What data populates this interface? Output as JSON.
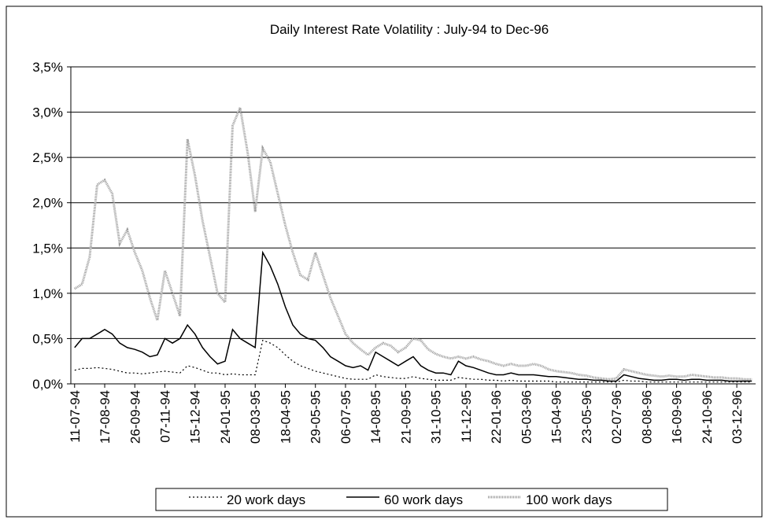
{
  "chart_data": {
    "type": "line",
    "title": "Daily Interest Rate Volatility : July-94 to Dec-96",
    "categories": [
      "11-07-94",
      null,
      null,
      null,
      "17-08-94",
      null,
      null,
      null,
      "26-09-94",
      null,
      null,
      null,
      "07-11-94",
      null,
      null,
      null,
      "15-12-94",
      null,
      null,
      null,
      "24-01-95",
      null,
      null,
      null,
      "08-03-95",
      null,
      null,
      null,
      "18-04-95",
      null,
      null,
      null,
      "29-05-95",
      null,
      null,
      null,
      "06-07-95",
      null,
      null,
      null,
      "14-08-95",
      null,
      null,
      null,
      "21-09-95",
      null,
      null,
      null,
      "31-10-95",
      null,
      null,
      null,
      "11-12-95",
      null,
      null,
      null,
      "22-01-96",
      null,
      null,
      null,
      "05-03-96",
      null,
      null,
      null,
      "15-04-96",
      null,
      null,
      null,
      "23-05-96",
      null,
      null,
      null,
      "02-07-96",
      null,
      null,
      null,
      "08-08-96",
      null,
      null,
      null,
      "16-09-96",
      null,
      null,
      null,
      "24-10-96",
      null,
      null,
      null,
      "03-12-96",
      null,
      null
    ],
    "series": [
      {
        "name": "20 work days",
        "color": "#000000",
        "dash": "2,3",
        "width": 1.2,
        "values": [
          0.15,
          0.17,
          0.17,
          0.18,
          0.17,
          0.16,
          0.14,
          0.12,
          0.12,
          0.11,
          0.12,
          0.13,
          0.14,
          0.13,
          0.12,
          0.2,
          0.18,
          0.15,
          0.12,
          0.12,
          0.1,
          0.11,
          0.1,
          0.1,
          0.1,
          0.48,
          0.45,
          0.4,
          0.32,
          0.25,
          0.2,
          0.17,
          0.14,
          0.12,
          0.1,
          0.08,
          0.06,
          0.05,
          0.05,
          0.05,
          0.1,
          0.08,
          0.07,
          0.06,
          0.06,
          0.08,
          0.06,
          0.05,
          0.04,
          0.04,
          0.04,
          0.07,
          0.06,
          0.05,
          0.05,
          0.04,
          0.04,
          0.03,
          0.04,
          0.03,
          0.03,
          0.03,
          0.03,
          0.03,
          0.02,
          0.02,
          0.02,
          0.02,
          0.02,
          0.02,
          0.02,
          0.02,
          0.02,
          0.04,
          0.03,
          0.03,
          0.02,
          0.02,
          0.02,
          0.02,
          0.02,
          0.02,
          0.02,
          0.02,
          0.02,
          0.02,
          0.02,
          0.02,
          0.02,
          0.02,
          0.02
        ]
      },
      {
        "name": "60 work days",
        "color": "#000000",
        "dash": "none",
        "width": 1.5,
        "values": [
          0.4,
          0.5,
          0.5,
          0.55,
          0.6,
          0.55,
          0.45,
          0.4,
          0.38,
          0.35,
          0.3,
          0.32,
          0.5,
          0.45,
          0.5,
          0.65,
          0.55,
          0.4,
          0.3,
          0.22,
          0.25,
          0.6,
          0.5,
          0.45,
          0.4,
          1.45,
          1.3,
          1.1,
          0.85,
          0.65,
          0.55,
          0.5,
          0.48,
          0.4,
          0.3,
          0.25,
          0.2,
          0.18,
          0.2,
          0.15,
          0.35,
          0.3,
          0.25,
          0.2,
          0.25,
          0.3,
          0.2,
          0.15,
          0.12,
          0.12,
          0.1,
          0.25,
          0.2,
          0.18,
          0.15,
          0.12,
          0.1,
          0.1,
          0.12,
          0.1,
          0.1,
          0.1,
          0.09,
          0.08,
          0.08,
          0.07,
          0.06,
          0.05,
          0.05,
          0.04,
          0.04,
          0.03,
          0.03,
          0.1,
          0.08,
          0.06,
          0.05,
          0.04,
          0.04,
          0.05,
          0.05,
          0.04,
          0.05,
          0.05,
          0.04,
          0.04,
          0.04,
          0.03,
          0.03,
          0.03,
          0.03
        ]
      },
      {
        "name": "100 work days",
        "color": "#999999",
        "dash": "1,1",
        "width": 3,
        "values": [
          1.05,
          1.1,
          1.4,
          2.2,
          2.25,
          2.1,
          1.55,
          1.7,
          1.45,
          1.25,
          0.95,
          0.7,
          1.25,
          1.0,
          0.75,
          2.7,
          2.3,
          1.8,
          1.4,
          1.0,
          0.9,
          2.85,
          3.05,
          2.55,
          1.9,
          2.6,
          2.45,
          2.1,
          1.75,
          1.45,
          1.2,
          1.15,
          1.45,
          1.2,
          0.95,
          0.75,
          0.55,
          0.45,
          0.38,
          0.32,
          0.4,
          0.45,
          0.42,
          0.35,
          0.4,
          0.5,
          0.48,
          0.38,
          0.33,
          0.3,
          0.28,
          0.3,
          0.28,
          0.3,
          0.27,
          0.25,
          0.22,
          0.2,
          0.22,
          0.2,
          0.2,
          0.22,
          0.2,
          0.16,
          0.14,
          0.13,
          0.12,
          0.1,
          0.09,
          0.07,
          0.06,
          0.05,
          0.06,
          0.16,
          0.14,
          0.12,
          0.1,
          0.09,
          0.08,
          0.09,
          0.08,
          0.08,
          0.1,
          0.09,
          0.08,
          0.07,
          0.07,
          0.06,
          0.06,
          0.05,
          0.05
        ]
      }
    ],
    "ylim": [
      0,
      3.5
    ],
    "yticks": [
      {
        "value": 0,
        "label": "0,0%"
      },
      {
        "value": 0.5,
        "label": "0,5%"
      },
      {
        "value": 1,
        "label": "1,0%"
      },
      {
        "value": 1.5,
        "label": "1,5%"
      },
      {
        "value": 2,
        "label": "2,0%"
      },
      {
        "value": 2.5,
        "label": "2,5%"
      },
      {
        "value": 3,
        "label": "3,0%"
      },
      {
        "value": 3.5,
        "label": "3,5%"
      }
    ],
    "grid": true,
    "legend": "bottom"
  }
}
